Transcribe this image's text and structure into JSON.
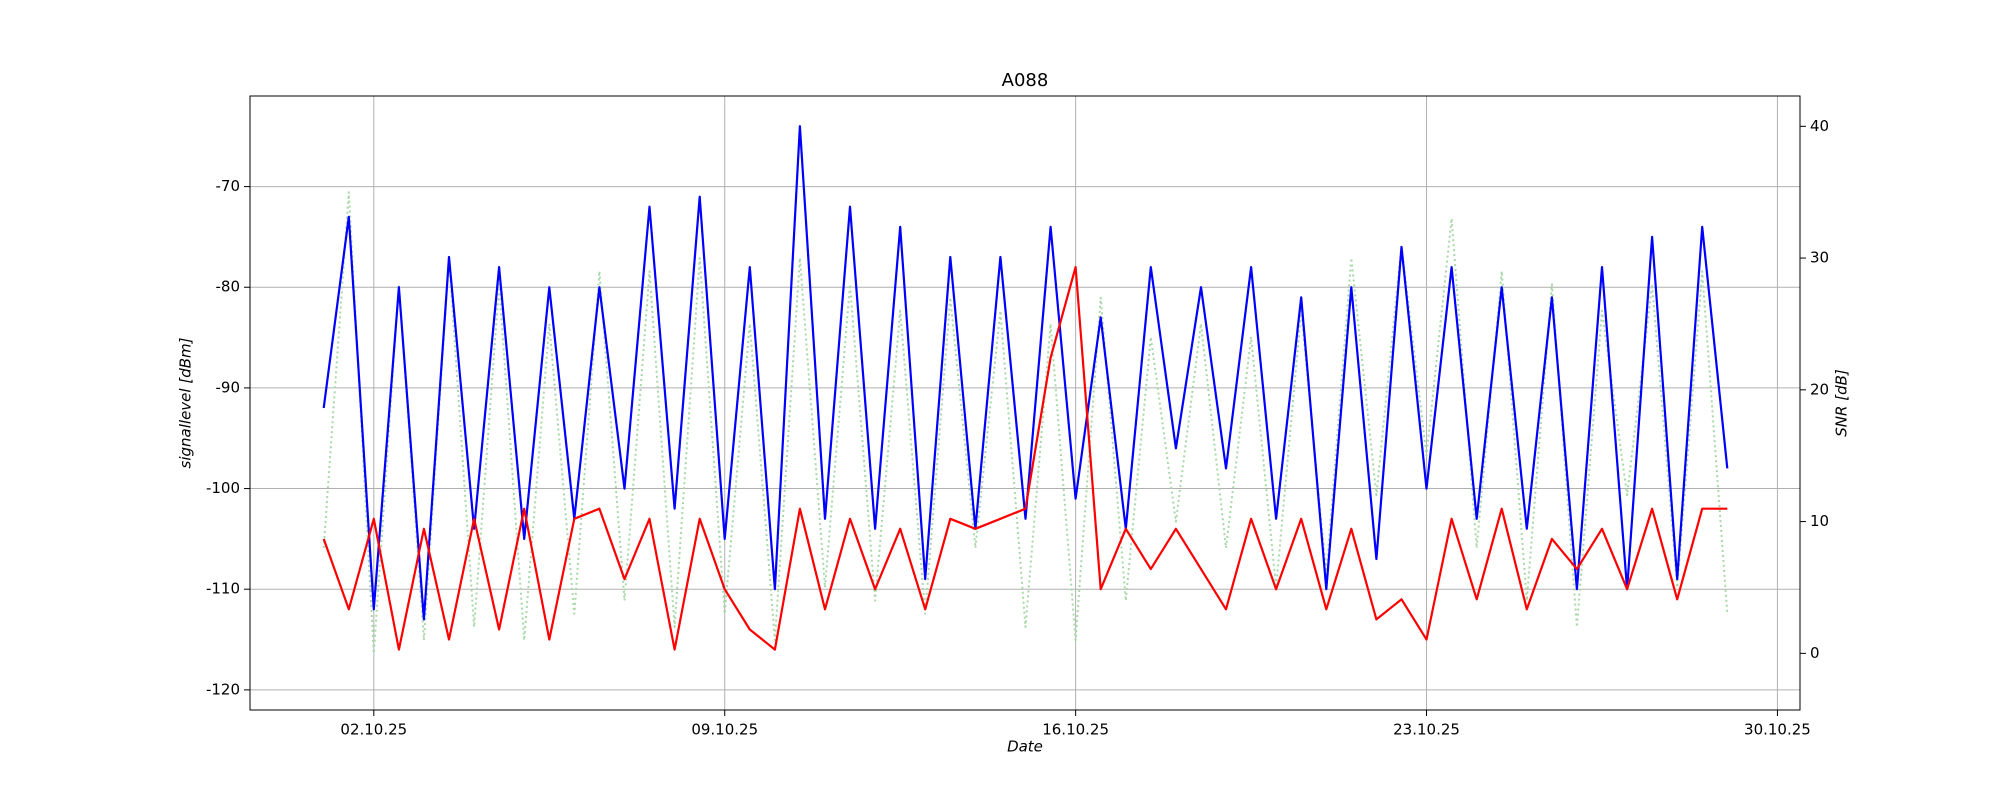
{
  "chart_data": {
    "type": "line",
    "title": "A088",
    "x_label": "Date",
    "y_label": "signallevel [dBm]",
    "y2_label": "SNR [dB]",
    "x": [
      1,
      1.5,
      2,
      2.5,
      3,
      3.5,
      4,
      4.5,
      5,
      5.5,
      6,
      6.5,
      7,
      7.5,
      8,
      8.5,
      9,
      9.5,
      10,
      10.5,
      11,
      11.5,
      12,
      12.5,
      13,
      13.5,
      14,
      14.5,
      15,
      15.5,
      16,
      16.5,
      17,
      17.5,
      18,
      18.5,
      19,
      19.5,
      20,
      20.5,
      21,
      21.5,
      22,
      22.5,
      23,
      23.5,
      24,
      24.5,
      25,
      25.5,
      26,
      26.5,
      27,
      27.5,
      28,
      28.5,
      29
    ],
    "xlim": [
      -0.47,
      30.45
    ],
    "xticks": [
      {
        "value": 2,
        "label": "02.10.25"
      },
      {
        "value": 9,
        "label": "09.10.25"
      },
      {
        "value": 16,
        "label": "16.10.25"
      },
      {
        "value": 23,
        "label": "23.10.25"
      },
      {
        "value": 30,
        "label": "30.10.25"
      }
    ],
    "ylim": [
      -122,
      -61
    ],
    "yticks": [
      -120,
      -110,
      -100,
      -90,
      -80,
      -70
    ],
    "y2lim": [
      -4.3,
      42.3
    ],
    "y2ticks": [
      0,
      10,
      20,
      30,
      40
    ],
    "grid": true,
    "series": [
      {
        "color": "#a8d8a8",
        "style": "dotted",
        "axis": "y2",
        "values": [
          8,
          35,
          0,
          28,
          1,
          30,
          2,
          28,
          1,
          25,
          3,
          29,
          4,
          29,
          2,
          30,
          3,
          25,
          1,
          30,
          5,
          28,
          4,
          26,
          3,
          27,
          8,
          26,
          2,
          25,
          1,
          27,
          4,
          24,
          10,
          25,
          8,
          24,
          5,
          26,
          6,
          30,
          12,
          31,
          15,
          33,
          8,
          29,
          4,
          28,
          2,
          26,
          12,
          28,
          5,
          29,
          3
        ]
      },
      {
        "color": "#0000ff",
        "style": "solid",
        "axis": "y",
        "values": [
          -92,
          -73,
          -112,
          -80,
          -113,
          -77,
          -104,
          -78,
          -105,
          -80,
          -103,
          -80,
          -100,
          -72,
          -102,
          -71,
          -105,
          -78,
          -110,
          -64,
          -103,
          -72,
          -104,
          -74,
          -109,
          -77,
          -104,
          -77,
          -103,
          -74,
          -101,
          -83,
          -104,
          -78,
          -96,
          -80,
          -98,
          -78,
          -103,
          -81,
          -110,
          -80,
          -107,
          -76,
          -100,
          -78,
          -103,
          -80,
          -104,
          -81,
          -110,
          -78,
          -110,
          -75,
          -109,
          -74,
          -98
        ]
      },
      {
        "color": "#ff0000",
        "style": "solid",
        "axis": "y",
        "values": [
          -105,
          -112,
          -103,
          -116,
          -104,
          -115,
          -103,
          -114,
          -102,
          -115,
          -103,
          -102,
          -109,
          -103,
          -116,
          -103,
          -110,
          -114,
          -116,
          -102,
          -112,
          -103,
          -110,
          -104,
          -112,
          -103,
          -104,
          -103,
          -102,
          -87,
          -78,
          -110,
          -104,
          -108,
          -104,
          -108,
          -112,
          -103,
          -110,
          -103,
          -112,
          -104,
          -113,
          -111,
          -115,
          -103,
          -111,
          -102,
          -112,
          -105,
          -108,
          -104,
          -110,
          -102,
          -111,
          -102,
          -102
        ]
      }
    ]
  }
}
